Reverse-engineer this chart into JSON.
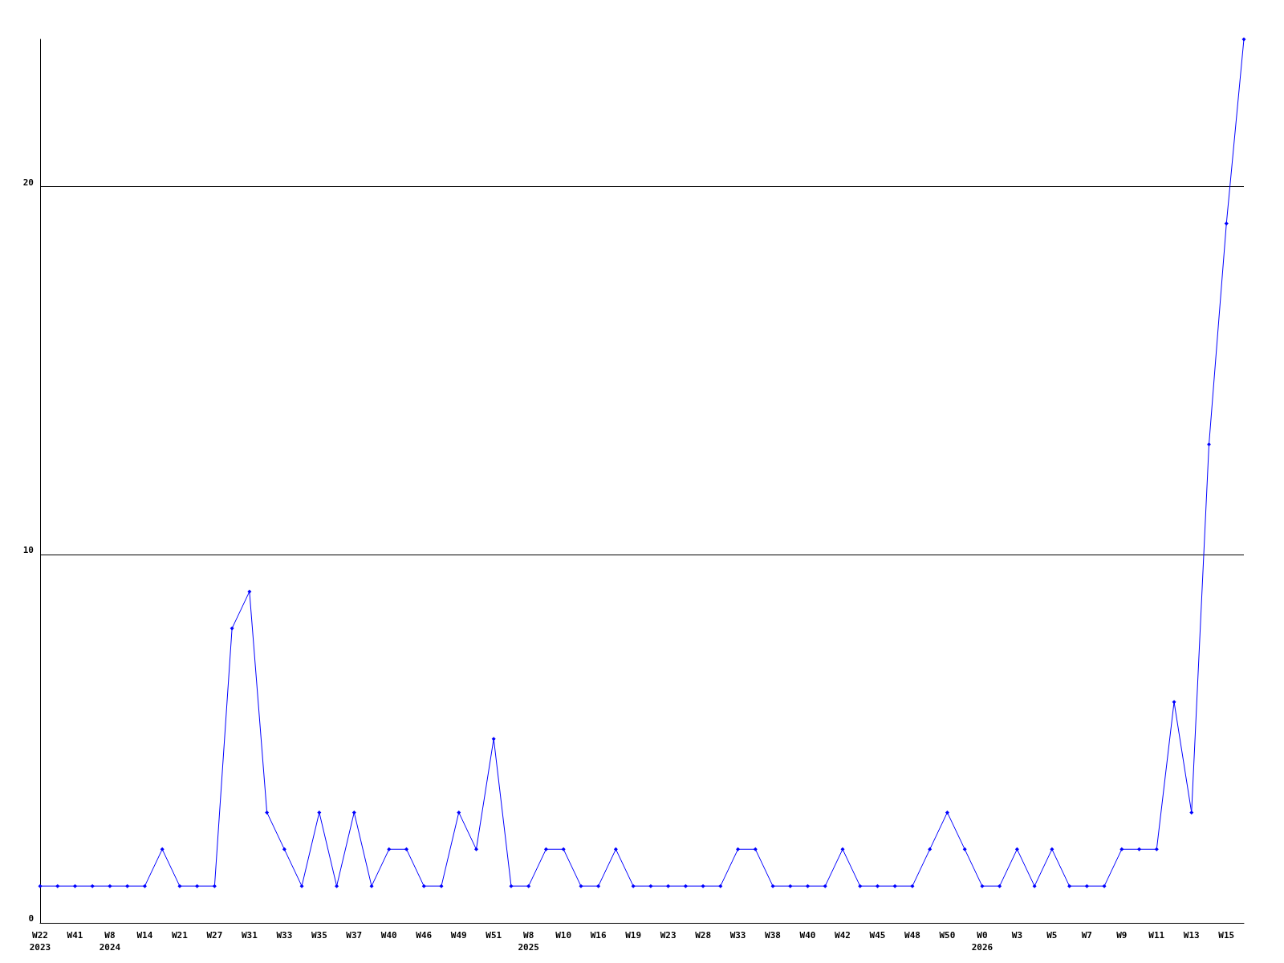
{
  "chart_data": {
    "type": "line",
    "categories": [
      "W22\n2023",
      null,
      "W41",
      null,
      "W8\n2024",
      null,
      "W14",
      null,
      "W21",
      null,
      "W27",
      null,
      "W31",
      null,
      "W33",
      null,
      "W35",
      null,
      "W37",
      null,
      "W40",
      null,
      "W46",
      null,
      "W49",
      null,
      "W51",
      null,
      "W8\n2025",
      null,
      "W10",
      null,
      "W16",
      null,
      "W19",
      null,
      "W23",
      null,
      "W28",
      null,
      "W33",
      null,
      "W38",
      null,
      "W40",
      null,
      "W42",
      null,
      "W45",
      null,
      "W48",
      null,
      "W50",
      null,
      "W0\n2026",
      null,
      "W3",
      null,
      "W5",
      null,
      "W7",
      null,
      "W9",
      null,
      "W11",
      null,
      "W13",
      null,
      "W15",
      null
    ],
    "series": [
      {
        "color": "#0000ff",
        "values": [
          1,
          1,
          1,
          1,
          1,
          1,
          1,
          2,
          1,
          1,
          1,
          8,
          9,
          3,
          2,
          1,
          3,
          1,
          3,
          1,
          2,
          2,
          1,
          1,
          3,
          2,
          5,
          1,
          1,
          2,
          2,
          1,
          1,
          2,
          1,
          1,
          1,
          1,
          1,
          1,
          2,
          2,
          1,
          1,
          1,
          1,
          2,
          1,
          1,
          1,
          1,
          2,
          3,
          2,
          1,
          1,
          2,
          1,
          2,
          1,
          1,
          1,
          2,
          2,
          2,
          6,
          3,
          13,
          19,
          24
        ]
      }
    ],
    "ylim": [
      0,
      24
    ],
    "yticks": [
      0,
      10,
      20
    ],
    "grid": "y",
    "marker": "diamond",
    "line_style": "solid"
  }
}
